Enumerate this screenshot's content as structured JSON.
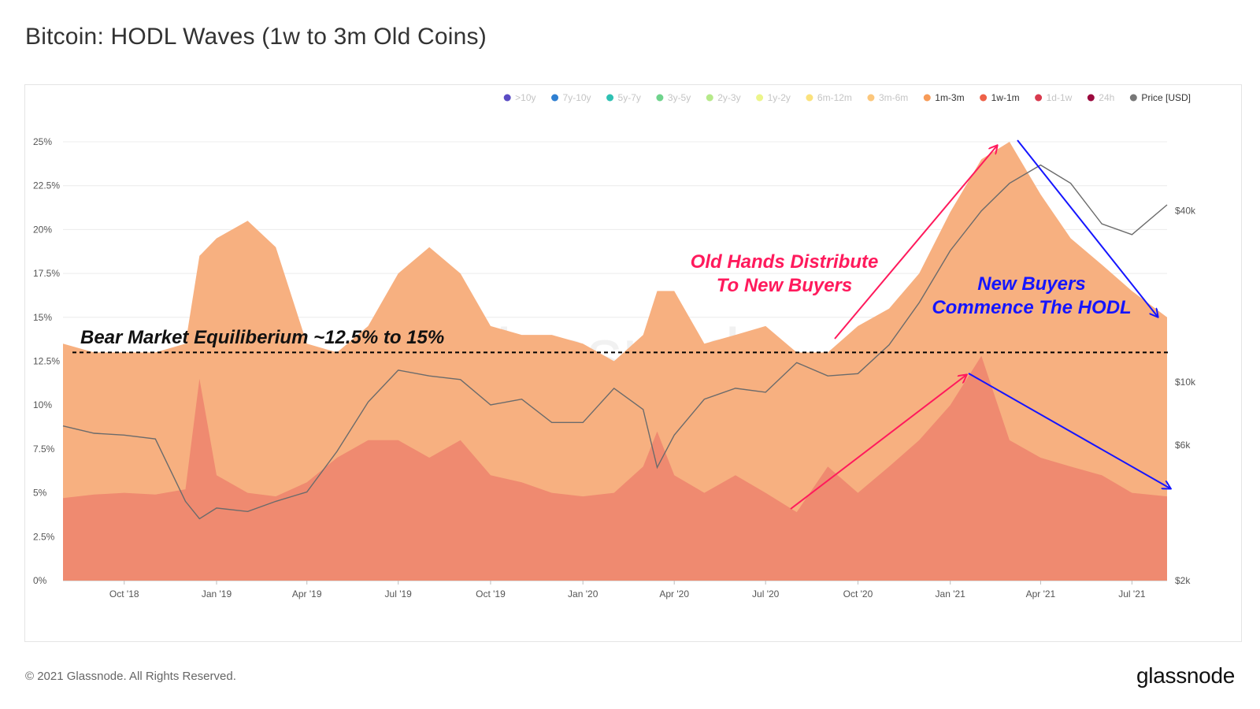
{
  "title": "Bitcoin: HODL Waves (1w to 3m Old Coins)",
  "footer": {
    "copyright": "© 2021 Glassnode. All Rights Reserved.",
    "logo": "glassnode"
  },
  "watermark": "glassnode",
  "chart_data": {
    "type": "area",
    "stacked": true,
    "y_axis": {
      "ticks": [
        "0%",
        "2.5%",
        "5%",
        "7.5%",
        "10%",
        "12.5%",
        "15%",
        "17.5%",
        "20%",
        "22.5%",
        "25%"
      ],
      "values": [
        0,
        2.5,
        5,
        7.5,
        10,
        12.5,
        15,
        17.5,
        20,
        22.5,
        25
      ],
      "ylim": [
        0,
        25
      ]
    },
    "y2_axis": {
      "scale": "log",
      "ticks": [
        "$2k",
        "$6k",
        "$10k",
        "$40k"
      ],
      "values": [
        2000,
        6000,
        10000,
        40000
      ],
      "ylim": [
        2000,
        70000
      ]
    },
    "x_axis": {
      "ticks": [
        "Oct '18",
        "Jan '19",
        "Apr '19",
        "Jul '19",
        "Oct '19",
        "Jan '20",
        "Apr '20",
        "Jul '20",
        "Oct '20",
        "Jan '21",
        "Apr '21",
        "Jul '21"
      ],
      "tick_dates": [
        "2018-10-01",
        "2019-01-01",
        "2019-04-01",
        "2019-07-01",
        "2019-10-01",
        "2020-01-01",
        "2020-04-01",
        "2020-07-01",
        "2020-10-01",
        "2021-01-01",
        "2021-04-01",
        "2021-07-01"
      ],
      "xlim": [
        "2018-08-01",
        "2021-08-05"
      ]
    },
    "legend": {
      "placement": "top-right",
      "items": [
        {
          "label": ">10y",
          "color": "#5b4cc4",
          "active": false
        },
        {
          "label": "7y-10y",
          "color": "#2f7fd1",
          "active": false
        },
        {
          "label": "5y-7y",
          "color": "#2fc1b3",
          "active": false
        },
        {
          "label": "3y-5y",
          "color": "#6fd38c",
          "active": false
        },
        {
          "label": "2y-3y",
          "color": "#b6e98a",
          "active": false
        },
        {
          "label": "1y-2y",
          "color": "#ecf58b",
          "active": false
        },
        {
          "label": "6m-12m",
          "color": "#fbe27c",
          "active": false
        },
        {
          "label": "3m-6m",
          "color": "#fcc77c",
          "active": false
        },
        {
          "label": "1m-3m",
          "color": "#f79b58",
          "active": true
        },
        {
          "label": "1w-1m",
          "color": "#ee6148",
          "active": true
        },
        {
          "label": "1d-1w",
          "color": "#d83a4e",
          "active": false
        },
        {
          "label": "24h",
          "color": "#9c0a3e",
          "active": false
        },
        {
          "label": "Price [USD]",
          "color": "#777777",
          "active": true
        }
      ]
    },
    "dates": [
      "2018-08-01",
      "2018-09-01",
      "2018-10-01",
      "2018-11-01",
      "2018-12-01",
      "2018-12-15",
      "2019-01-01",
      "2019-02-01",
      "2019-03-01",
      "2019-04-01",
      "2019-05-01",
      "2019-06-01",
      "2019-07-01",
      "2019-08-01",
      "2019-09-01",
      "2019-10-01",
      "2019-11-01",
      "2019-12-01",
      "2020-01-01",
      "2020-02-01",
      "2020-03-01",
      "2020-03-15",
      "2020-04-01",
      "2020-05-01",
      "2020-06-01",
      "2020-07-01",
      "2020-08-01",
      "2020-09-01",
      "2020-10-01",
      "2020-11-01",
      "2020-12-01",
      "2021-01-01",
      "2021-02-01",
      "2021-03-01",
      "2021-04-01",
      "2021-05-01",
      "2021-06-01",
      "2021-07-01",
      "2021-08-05"
    ],
    "series": [
      {
        "name": "1w-1m",
        "color": "#ef8a70",
        "values": [
          4.7,
          4.9,
          5.0,
          4.9,
          5.2,
          11.5,
          6.0,
          5.0,
          4.8,
          5.6,
          7.0,
          8.0,
          8.0,
          7.0,
          8.0,
          6.0,
          5.6,
          5.0,
          4.8,
          5.0,
          6.5,
          8.5,
          6.0,
          5.0,
          6.0,
          5.0,
          3.9,
          6.5,
          5.0,
          6.5,
          8.0,
          10.0,
          12.8,
          8.0,
          7.0,
          6.5,
          6.0,
          5.0,
          4.8
        ]
      },
      {
        "name": "1m-3m",
        "color": "#f7b080",
        "values": [
          13.5,
          13.0,
          13.0,
          13.0,
          13.5,
          18.5,
          19.5,
          20.5,
          19.0,
          13.5,
          13.0,
          14.5,
          17.5,
          19.0,
          17.5,
          14.5,
          14.0,
          14.0,
          13.5,
          12.5,
          14.0,
          16.5,
          16.5,
          13.5,
          14.0,
          14.5,
          13.0,
          13.0,
          14.5,
          15.5,
          17.5,
          21.0,
          24.0,
          25.0,
          22.0,
          19.5,
          18.0,
          16.5,
          15.0
        ]
      },
      {
        "name": "Price [USD]",
        "axis": "y2",
        "color": "#777777",
        "values": [
          7000,
          6600,
          6500,
          6300,
          3800,
          3300,
          3600,
          3500,
          3800,
          4100,
          5700,
          8500,
          11000,
          10500,
          10200,
          8300,
          8700,
          7200,
          7200,
          9500,
          8000,
          5000,
          6500,
          8700,
          9500,
          9200,
          11700,
          10500,
          10700,
          13500,
          19000,
          29000,
          40000,
          50000,
          58000,
          50000,
          36000,
          33000,
          42000
        ]
      }
    ],
    "equilibrium_line": {
      "value": 13
    }
  },
  "annotations": {
    "bear_market": "Bear Market Equiliberium ~12.5% to 15%",
    "old_hands_line1": "Old Hands Distribute",
    "old_hands_line2": "To New Buyers",
    "new_buyers_line1": "New Buyers",
    "new_buyers_line2": "Commence The HODL"
  }
}
